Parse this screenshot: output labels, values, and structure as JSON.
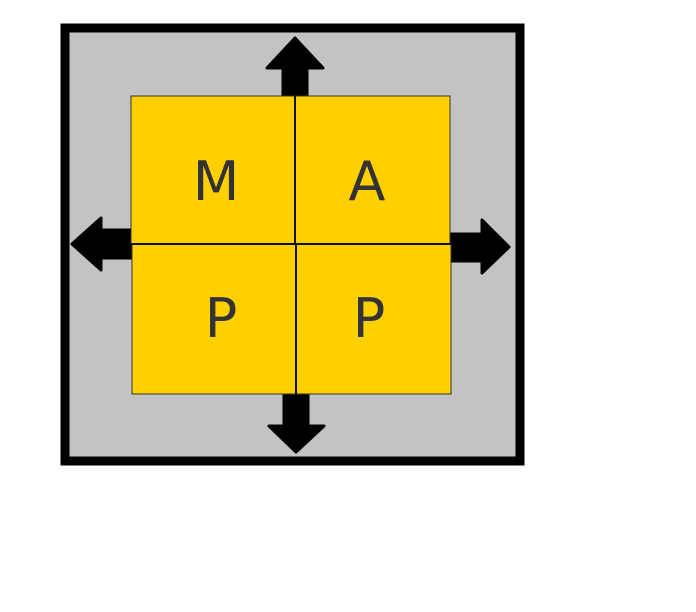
{
  "colors": {
    "frame_border": "#000000",
    "frame_fill": "#c3c3c3",
    "tile_fill": "#fed000",
    "tile_border": "#333333",
    "letter": "#333333",
    "arrow": "#000000"
  },
  "tiles": [
    {
      "letter": "M"
    },
    {
      "letter": "A"
    },
    {
      "letter": "P"
    },
    {
      "letter": "P"
    }
  ],
  "arrows": [
    {
      "direction": "up",
      "icon": "arrow-up-icon"
    },
    {
      "direction": "left",
      "icon": "arrow-left-icon"
    },
    {
      "direction": "right",
      "icon": "arrow-right-icon"
    },
    {
      "direction": "down",
      "icon": "arrow-down-icon"
    }
  ]
}
